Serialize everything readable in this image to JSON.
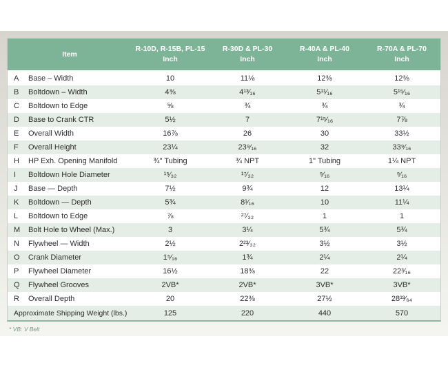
{
  "table": {
    "header": {
      "item_label": "Item",
      "columns": [
        {
          "models": "R-10D, R-15B, PL-15",
          "unit": "Inch"
        },
        {
          "models": "R-30D & PL-30",
          "unit": "Inch"
        },
        {
          "models": "R-40A & PL-40",
          "unit": "Inch"
        },
        {
          "models": "R-70A & PL-70",
          "unit": "Inch"
        }
      ]
    },
    "rows": [
      {
        "letter": "A",
        "item": "Base – Width",
        "values": [
          "10",
          "11⅛",
          "12⅜",
          "12⅜"
        ]
      },
      {
        "letter": "B",
        "item": "Boltdown – Width",
        "values": [
          "4⅜",
          "4¹³⁄₁₆",
          "5¹¹⁄₁₆",
          "5¹⁵⁄₁₆"
        ]
      },
      {
        "letter": "C",
        "item": "Boltdown to Edge",
        "values": [
          "⅝",
          "¾",
          "¾",
          "¾"
        ]
      },
      {
        "letter": "D",
        "item": "Base to Crank CTR",
        "values": [
          "5½",
          "7",
          "7¹⁵⁄₁₆",
          "7⅞"
        ]
      },
      {
        "letter": "E",
        "item": "Overall Width",
        "values": [
          "16⅞",
          "26",
          "30",
          "33½"
        ]
      },
      {
        "letter": "F",
        "item": "Overall Height",
        "values": [
          "23¼",
          "23⁹⁄₁₆",
          "32",
          "33⁹⁄₁₆"
        ]
      },
      {
        "letter": "H",
        "item": "HP Exh. Opening Manifold",
        "values": [
          "¾\" Tubing",
          "¾ NPT",
          "1\" Tubing",
          "1¼ NPT"
        ]
      },
      {
        "letter": "I",
        "item": "Boltdown Hole Diameter",
        "values": [
          "¹⁵⁄₃₂",
          "¹⁷⁄₃₂",
          "⁹⁄₁₆",
          "⁹⁄₁₆"
        ]
      },
      {
        "letter": "J",
        "item": "Base — Depth",
        "values": [
          "7½",
          "9¾",
          "12",
          "13¼"
        ]
      },
      {
        "letter": "K",
        "item": "Boltdown — Depth",
        "values": [
          "5¾",
          "8¹⁄₁₆",
          "10",
          "11¼"
        ]
      },
      {
        "letter": "L",
        "item": "Boltdown to Edge",
        "values": [
          "⅞",
          "²⁷⁄₃₂",
          "1",
          "1"
        ]
      },
      {
        "letter": "M",
        "item": "Bolt Hole to Wheel (Max.)",
        "values": [
          "3",
          "3¼",
          "5¾",
          "5¾"
        ]
      },
      {
        "letter": "N",
        "item": "Flywheel — Width",
        "values": [
          "2½",
          "2²³⁄₃₂",
          "3½",
          "3½"
        ]
      },
      {
        "letter": "O",
        "item": "Crank Diameter",
        "values": [
          "1⁵⁄₁₆",
          "1¾",
          "2¼",
          "2¼"
        ]
      },
      {
        "letter": "P",
        "item": "Flywheel Diameter",
        "values": [
          "16½",
          "18⅜",
          "22",
          "22³⁄₁₆"
        ]
      },
      {
        "letter": "Q",
        "item": "Flywheel Grooves",
        "values": [
          "2VB*",
          "2VB*",
          "3VB*",
          "3VB*"
        ]
      },
      {
        "letter": "R",
        "item": "Overall Depth",
        "values": [
          "20",
          "22⅜",
          "27½",
          "28³³⁄₆₄"
        ]
      }
    ],
    "footer_row": {
      "label": "Approximate Shipping Weight (lbs.)",
      "values": [
        "125",
        "220",
        "440",
        "570"
      ]
    },
    "footnote": "* VB: V Belt"
  },
  "colors": {
    "header_green": "#7db497",
    "row_light_green": "#e4ede6",
    "table_bottom_border": "#8fb69e",
    "panel_top": "#d7d4cd",
    "panel_bottom": "#f4f5f1",
    "footnote_text": "#7d968a"
  }
}
